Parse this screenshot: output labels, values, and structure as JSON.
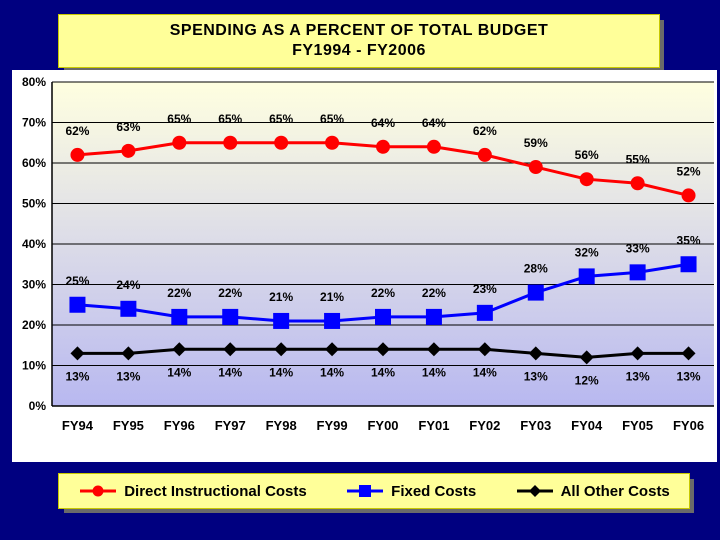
{
  "title": {
    "line1": "SPENDING AS A PERCENT OF TOTAL BUDGET",
    "line2": "FY1994 - FY2006"
  },
  "chart_data": {
    "type": "line",
    "categories": [
      "FY94",
      "FY95",
      "FY96",
      "FY97",
      "FY98",
      "FY99",
      "FY00",
      "FY01",
      "FY02",
      "FY03",
      "FY04",
      "FY05",
      "FY06"
    ],
    "ylim": [
      0,
      80
    ],
    "yticks": [
      "0%",
      "10%",
      "20%",
      "30%",
      "40%",
      "50%",
      "60%",
      "70%",
      "80%"
    ],
    "grid": true,
    "legend_position": "bottom",
    "series": [
      {
        "name": "Direct Instructional Costs",
        "color": "#ff0000",
        "marker": "circle",
        "values": [
          62,
          63,
          65,
          65,
          65,
          65,
          64,
          64,
          62,
          59,
          56,
          55,
          52
        ],
        "labels": [
          "62%",
          "63%",
          "65%",
          "65%",
          "65%",
          "65%",
          "64%",
          "64%",
          "62%",
          "59%",
          "56%",
          "55%",
          "52%"
        ]
      },
      {
        "name": "Fixed Costs",
        "color": "#0000ff",
        "marker": "square",
        "values": [
          25,
          24,
          22,
          22,
          21,
          21,
          22,
          22,
          23,
          28,
          32,
          33,
          35
        ],
        "labels": [
          "25%",
          "24%",
          "22%",
          "22%",
          "21%",
          "21%",
          "22%",
          "22%",
          "23%",
          "28%",
          "32%",
          "33%",
          "35%"
        ]
      },
      {
        "name": "All Other Costs",
        "color": "#000000",
        "marker": "diamond",
        "values": [
          13,
          13,
          14,
          14,
          14,
          14,
          14,
          14,
          14,
          13,
          12,
          13,
          13
        ],
        "labels": [
          "13%",
          "13%",
          "14%",
          "14%",
          "14%",
          "14%",
          "14%",
          "14%",
          "14%",
          "13%",
          "12%",
          "13%",
          "13%"
        ]
      }
    ]
  }
}
